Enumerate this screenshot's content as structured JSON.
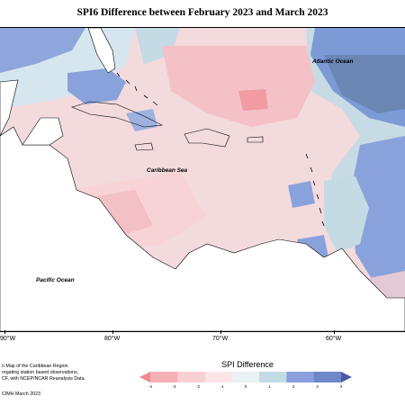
{
  "title": "SPI6 Difference between February 2023 and March 2023",
  "labels": {
    "atlantic": "Atlantic Ocean",
    "caribbean": "Caribbean Sea",
    "pacific": "Pacific Ocean"
  },
  "longitudes": [
    "90°W",
    "80°W",
    "70°W",
    "60°W"
  ],
  "legend": {
    "title": "SPI Difference",
    "ticks": [
      "-4",
      "-3",
      "-2",
      "-1",
      "0",
      "1",
      "2",
      "3",
      "4"
    ],
    "colors": [
      "#f08a94",
      "#f5b0b5",
      "#f8cfd2",
      "#fbe5e7",
      "#e9f1f4",
      "#c3dbe4",
      "#8a9fdb",
      "#6f86c9",
      "#4a5aa8"
    ]
  },
  "credit": {
    "line1": "n Map of the Caribbean Region",
    "line2": "regating station based observations,",
    "line3": "CF, with NCEP/NCAR Reanalysis Data.",
    "line4": "CIMH March 2023"
  }
}
